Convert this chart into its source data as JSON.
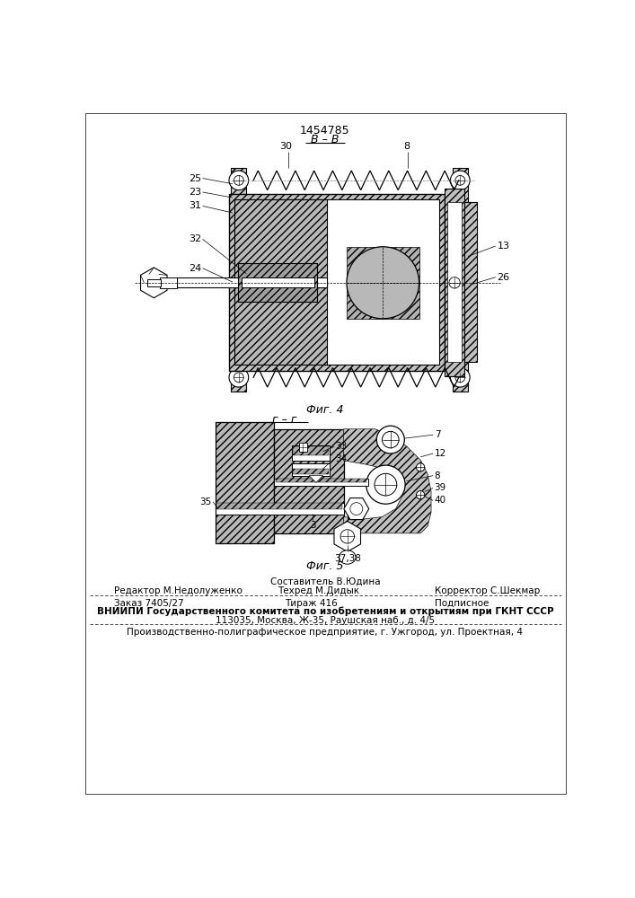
{
  "patent_number": "1454785",
  "section_label_top": "B – B",
  "fig4_label": "Фиг. 4",
  "fig5_label": "Фиг. 5",
  "section_label_bot": "г – г",
  "footer_sestavitel": "Составитель В.Юдина",
  "footer_redaktor": "Редактор М.Недолуженко",
  "footer_tekhred": "Техред М.Дидык",
  "footer_korrektor": "Корректор С.Шекмар",
  "footer_order": "Заказ 7405/27",
  "footer_tirazh": "Тираж 416",
  "footer_podpis": "Подписное",
  "footer_vniip": "ВНИИПИ Государственного комитета по изобретениям и открытиям при ГКНТ СССР",
  "footer_addr1": "113035, Москва, Ж-35, Раушская наб., д. 4/5",
  "footer_addr2": "Производственно-полиграфическое предприятие, г. Ужгород, ул. Проектная, 4",
  "bg_color": "#ffffff",
  "line_color": "#000000"
}
